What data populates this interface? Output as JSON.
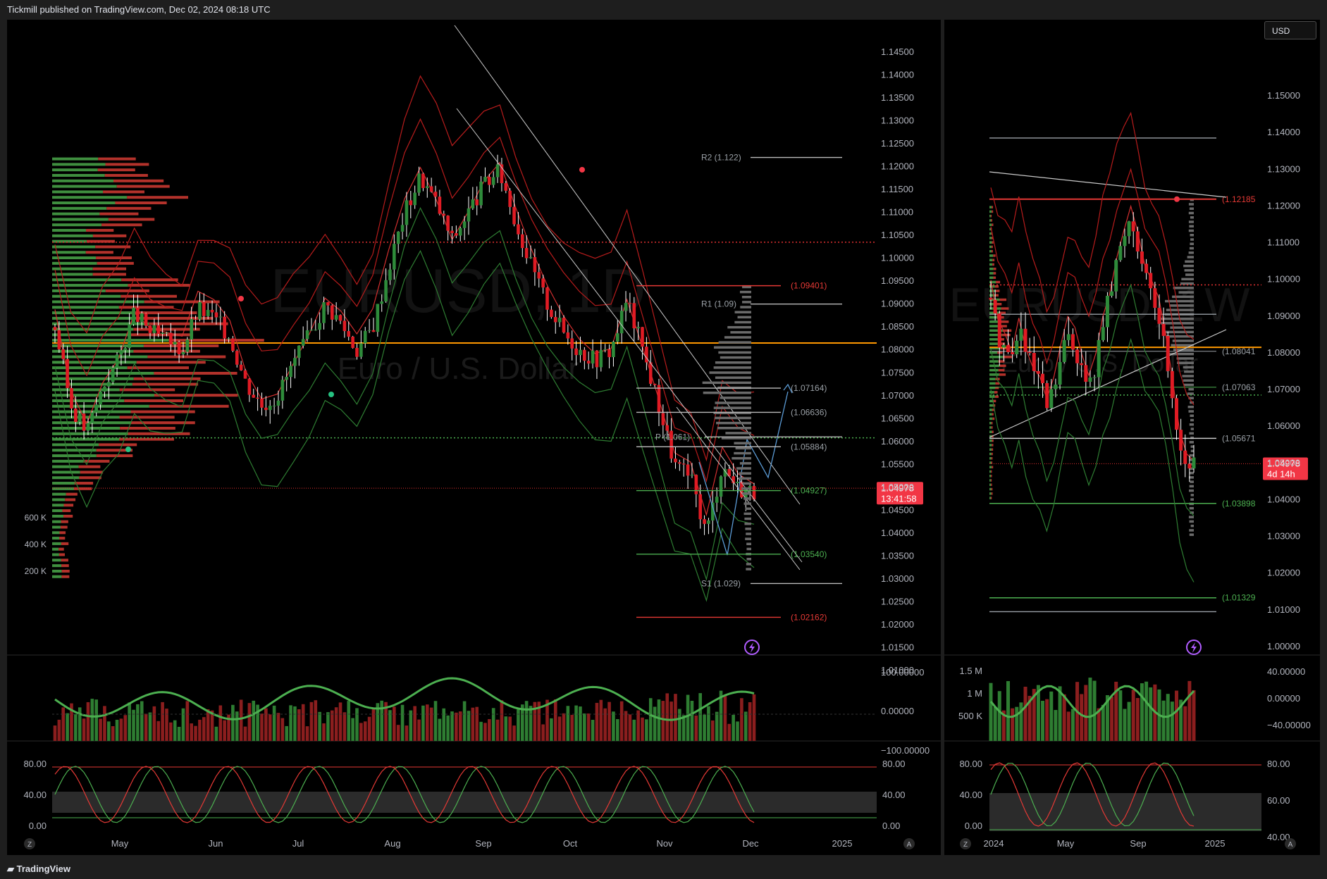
{
  "header": {
    "published": "Tickmill published on TradingView.com, Dec 02, 2024 08:18 UTC"
  },
  "footer": {
    "brand": "TradingView"
  },
  "colors": {
    "bull": "#26a69a",
    "bear": "#f23645",
    "green_candle": "#2e8b3a",
    "red_candle": "#e01b24",
    "orange_line": "#ff9800",
    "volume_profile_green": "#3f8f3f",
    "volume_profile_red": "#b3322b",
    "channel": "#cccccc",
    "projection": "#5b9bd5"
  },
  "left": {
    "watermark_symbol": "EURUSD, 1D",
    "watermark_name": "Euro / U.S. Dollar",
    "price_ticks": [
      "1.14500",
      "1.14000",
      "1.13500",
      "1.13000",
      "1.12500",
      "1.12000",
      "1.11500",
      "1.11000",
      "1.10500",
      "1.10000",
      "1.09500",
      "1.09000",
      "1.08500",
      "1.08000",
      "1.07500",
      "1.07000",
      "1.06500",
      "1.06000",
      "1.05500",
      "1.05000",
      "1.04500",
      "1.04000",
      "1.03500",
      "1.03000",
      "1.02500",
      "1.02000",
      "1.01500",
      "1.01000"
    ],
    "time_ticks": [
      "May",
      "Jun",
      "Jul",
      "Aug",
      "Sep",
      "Oct",
      "Nov",
      "Dec",
      "2025"
    ],
    "last_price": "1.04978",
    "countdown": "13:41:58",
    "levels": [
      {
        "label": "R2 (1.122)"
      },
      {
        "label": "(1.09401)"
      },
      {
        "label": "R1 (1.09)"
      },
      {
        "label": "(1.07164)"
      },
      {
        "label": "(1.06636)"
      },
      {
        "label": "P (1.061)"
      },
      {
        "label": "(1.05884)"
      },
      {
        "label": "(1.04927)"
      },
      {
        "label": "(1.03540)"
      },
      {
        "label": "S1 (1.029)"
      },
      {
        "label": "(1.02162)"
      }
    ],
    "volume_ticks": [
      "600 K",
      "400 K",
      "200 K"
    ],
    "osc_ticks_right": [
      "100.00000",
      "0.00000",
      "−100.00000"
    ],
    "stoch_ticks_left": [
      "80.00",
      "40.00",
      "0.00"
    ],
    "stoch_ticks_right": [
      "80.00",
      "40.00",
      "0.00"
    ],
    "scale_buttons": [
      "Z",
      "A"
    ]
  },
  "right": {
    "currency_button": "USD",
    "watermark_symbol": "EURUSD, 1W",
    "watermark_name": "Euro / U.S. Dollar",
    "price_ticks": [
      "1.15000",
      "1.14000",
      "1.13000",
      "1.12000",
      "1.11000",
      "1.10000",
      "1.09000",
      "1.08000",
      "1.07000",
      "1.06000",
      "1.05000",
      "1.04000",
      "1.03000",
      "1.02000",
      "1.01000",
      "1.00000"
    ],
    "time_ticks": [
      "2024",
      "May",
      "Sep",
      "2025"
    ],
    "last_price": "1.04978",
    "countdown": "4d 14h",
    "levels": [
      {
        "label": "(1.12185"
      },
      {
        "label": "(1.08041"
      },
      {
        "label": "(1.07063"
      },
      {
        "label": "(1.05671"
      },
      {
        "label": "(1.03898"
      },
      {
        "label": "(1.01329"
      }
    ],
    "volume_ticks": [
      "1.5 M",
      "1 M",
      "500 K"
    ],
    "osc_ticks_right": [
      "40.00000",
      "0.00000",
      "−40.00000"
    ],
    "stoch_ticks_left": [
      "80.00",
      "40.00",
      "0.00"
    ],
    "stoch_ticks_right": [
      "80.00",
      "60.00",
      "40.00"
    ],
    "scale_buttons": [
      "Z",
      "A"
    ]
  },
  "chart_data": [
    {
      "type": "candlestick",
      "title": "EURUSD, 1D",
      "subtitle": "Euro / U.S. Dollar",
      "ylim": [
        1.01,
        1.145
      ],
      "x": [
        "May",
        "Jun",
        "Jul",
        "Aug",
        "Sep",
        "Oct",
        "Nov",
        "Dec",
        "2025"
      ],
      "close_path": [
        1.085,
        1.068,
        1.062,
        1.072,
        1.078,
        1.088,
        1.084,
        1.082,
        1.08,
        1.089,
        1.087,
        1.083,
        1.073,
        1.068,
        1.07,
        1.077,
        1.083,
        1.09,
        1.086,
        1.08,
        1.085,
        1.098,
        1.11,
        1.118,
        1.112,
        1.104,
        1.11,
        1.116,
        1.119,
        1.108,
        1.098,
        1.09,
        1.084,
        1.08,
        1.078,
        1.08,
        1.091,
        1.08,
        1.068,
        1.055,
        1.052,
        1.04,
        1.055,
        1.05,
        1.049
      ],
      "last_price": 1.04978,
      "horizontal_levels": [
        1.122,
        1.09401,
        1.09,
        1.07164,
        1.06636,
        1.061,
        1.05884,
        1.04927,
        1.0354,
        1.029,
        1.02162,
        1.1035,
        1.0815,
        1.0608,
        1.0498
      ]
    },
    {
      "type": "candlestick",
      "title": "EURUSD, 1W",
      "subtitle": "Euro / U.S. Dollar",
      "ylim": [
        0.997,
        1.155
      ],
      "x": [
        "2024",
        "May",
        "Sep",
        "2025"
      ],
      "close_path": [
        1.095,
        1.085,
        1.082,
        1.078,
        1.088,
        1.08,
        1.075,
        1.072,
        1.065,
        1.07,
        1.078,
        1.085,
        1.082,
        1.075,
        1.07,
        1.077,
        1.088,
        1.095,
        1.105,
        1.112,
        1.118,
        1.11,
        1.1,
        1.095,
        1.09,
        1.08,
        1.068,
        1.055,
        1.05,
        1.049
      ],
      "last_price": 1.04978,
      "horizontal_levels": [
        1.12185,
        1.08041,
        1.07063,
        1.05671,
        1.03898,
        1.01329
      ]
    }
  ]
}
